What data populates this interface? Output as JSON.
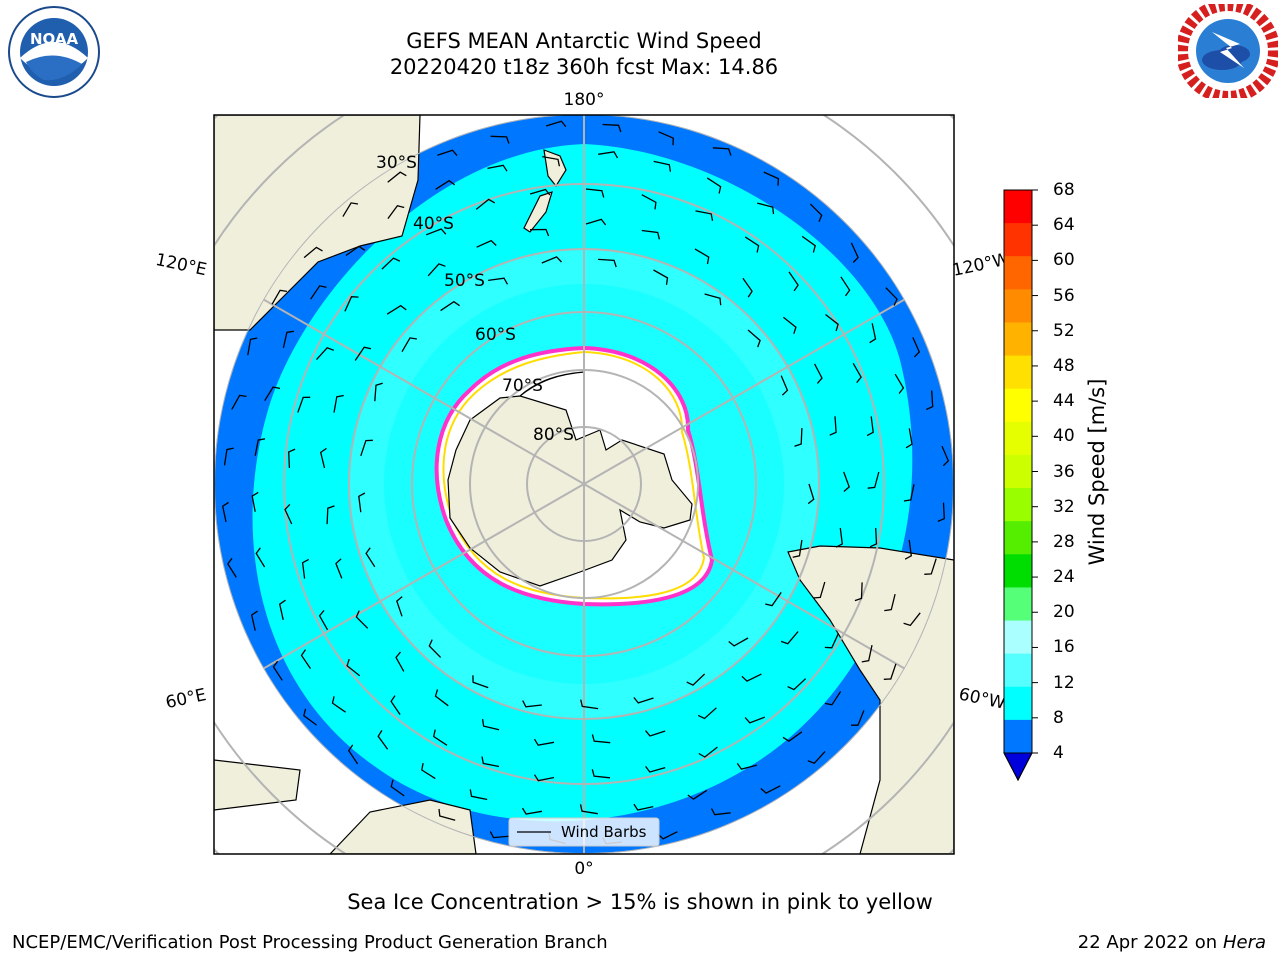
{
  "title_line1": "GEFS MEAN Antarctic Wind Speed",
  "title_line2": "20220420 t18z 360h fcst   Max: 14.86",
  "map_labels": {
    "lon_top": "180°",
    "lon_bottom": "0°",
    "lon_120e": "120°E",
    "lon_120w": "120°W",
    "lon_60e": "60°E",
    "lon_60w": "60°W",
    "lat_30s": "30°S",
    "lat_40s": "40°S",
    "lat_50s": "50°S",
    "lat_60s": "60°S",
    "lat_70s": "70°S",
    "lat_80s": "80°S"
  },
  "legend": {
    "wind_barbs": "Wind Barbs"
  },
  "colorbar": {
    "label": "Wind Speed [m/s]",
    "ticks": [
      "68",
      "64",
      "60",
      "56",
      "52",
      "48",
      "44",
      "40",
      "36",
      "32",
      "28",
      "24",
      "20",
      "16",
      "12",
      "8",
      "4"
    ],
    "colors": [
      "#ff0000",
      "#ff3300",
      "#ff6600",
      "#ff8c00",
      "#ffb300",
      "#ffe000",
      "#ffff00",
      "#e6ff00",
      "#ccff00",
      "#99ff00",
      "#55ee00",
      "#00dd00",
      "#55ff77",
      "#aaffff",
      "#55ffff",
      "#00ffff",
      "#0077ff"
    ],
    "under_color": "#0000dd"
  },
  "colors": {
    "land": "#efefdc",
    "ice": "#ffffff",
    "wind_low": "#0077ff",
    "wind_mid": "#00ffff",
    "wind_high": "#55ffff",
    "ice_edge_pink": "#ff33cc",
    "ice_edge_yellow": "#ffdd00"
  },
  "caption": "Sea Ice Concentration > 15% is shown in pink to yellow",
  "footer_left": "NCEP/EMC/Verification Post Processing Product Generation Branch",
  "footer_right_date": "22 Apr 2022 on ",
  "footer_right_host": "Hera",
  "logos": {
    "noaa_text": "NOAA",
    "nws_text": "NATIONAL WEATHER SERVICE",
    "noaa_ring_text": "NATIONAL OCEANIC AND ATMOSPHERIC ADMINISTRATION"
  }
}
